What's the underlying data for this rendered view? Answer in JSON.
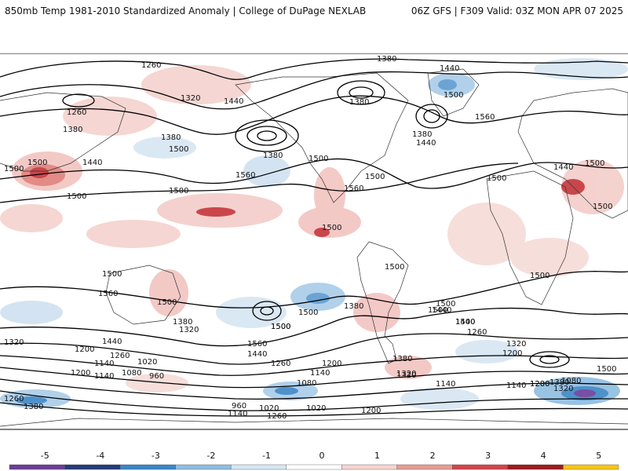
{
  "header": {
    "left": "850mb Temp 1981-2010 Standardized Anomaly | College of DuPage NEXLAB",
    "right": "06Z GFS | F309 Valid: 03Z MON APR 07 2025"
  },
  "colorbar": {
    "ticks": [
      "-5",
      "-4",
      "-3",
      "-2",
      "-1",
      "0",
      "1",
      "2",
      "3",
      "4",
      "5"
    ],
    "colors": [
      "#6a3d9a",
      "#253a7a",
      "#3b86c6",
      "#8fbde0",
      "#d6e6f3",
      "#ffffff",
      "#f6d4d0",
      "#e89a94",
      "#d2444a",
      "#9c1b20",
      "#f5c518"
    ]
  },
  "contour_labels": [
    "1260",
    "1380",
    "1440",
    "1320",
    "1260",
    "1380",
    "1380",
    "1500",
    "1500",
    "1440",
    "1500",
    "1500",
    "1380",
    "1560",
    "1500",
    "1500",
    "1560",
    "1500",
    "1440",
    "1380",
    "1440",
    "1500",
    "1560",
    "1380",
    "1500",
    "1500",
    "1500",
    "1500",
    "1440",
    "1500",
    "1500",
    "1500",
    "1500",
    "1500",
    "1560",
    "1500",
    "1500",
    "1500",
    "1380",
    "1500",
    "1440",
    "1380",
    "1320",
    "1260",
    "1440",
    "1560",
    "1260",
    "1320",
    "1200",
    "1140",
    "1020",
    "960",
    "1080",
    "1140",
    "1200",
    "1200",
    "1320",
    "1440",
    "1500",
    "1380",
    "1260",
    "1200",
    "1320",
    "1140",
    "960",
    "1020",
    "1140",
    "1260",
    "1200",
    "1140",
    "1080",
    "1320",
    "1140",
    "1200",
    "1260",
    "1380",
    "1380",
    "1440",
    "1320",
    "1200",
    "1080",
    "1020",
    "1500"
  ],
  "map": {
    "field": "850mb Temp Standardized Anomaly",
    "overlay": "850mb geopotential height contours"
  }
}
